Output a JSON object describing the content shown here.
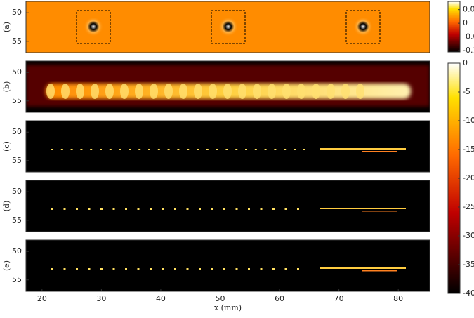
{
  "chart_data": [
    {
      "type": "image",
      "label": "(a)",
      "xlim": [
        17.3,
        85.3
      ],
      "ylim": [
        57,
        48
      ],
      "yticks": [
        50,
        55
      ]
    },
    {
      "type": "image",
      "label": "(b)",
      "xlim": [
        17.3,
        85.3
      ],
      "ylim": [
        57,
        48
      ],
      "yticks": [
        50,
        55
      ]
    },
    {
      "type": "image",
      "label": "(c)",
      "xlim": [
        17.3,
        85.3
      ],
      "ylim": [
        57,
        48
      ],
      "yticks": [
        50,
        55
      ]
    },
    {
      "type": "image",
      "label": "(d)",
      "xlim": [
        17.3,
        85.3
      ],
      "ylim": [
        57,
        48
      ],
      "yticks": [
        50,
        55
      ]
    },
    {
      "type": "image",
      "label": "(e)",
      "xlim": [
        17.3,
        85.3
      ],
      "ylim": [
        57,
        48
      ],
      "yticks": [
        50,
        55
      ],
      "xticks": [
        20,
        30,
        40,
        50,
        60,
        70,
        80
      ],
      "xlabel": "x (mm)"
    },
    {
      "type": "colorbar",
      "ylim": [
        -0.105,
        0.08
      ],
      "yticks": [
        {
          "value": 0.05,
          "label": "0.0"
        },
        0,
        {
          "value": -0.05,
          "label": "-0.0"
        },
        {
          "value": -0.1,
          "label": "-0.1"
        }
      ]
    },
    {
      "type": "colorbar",
      "ylim": [
        -40,
        0
      ],
      "yticks": [
        0,
        -5,
        -10,
        -15,
        -20,
        -25,
        -30,
        -35,
        -40
      ]
    }
  ]
}
